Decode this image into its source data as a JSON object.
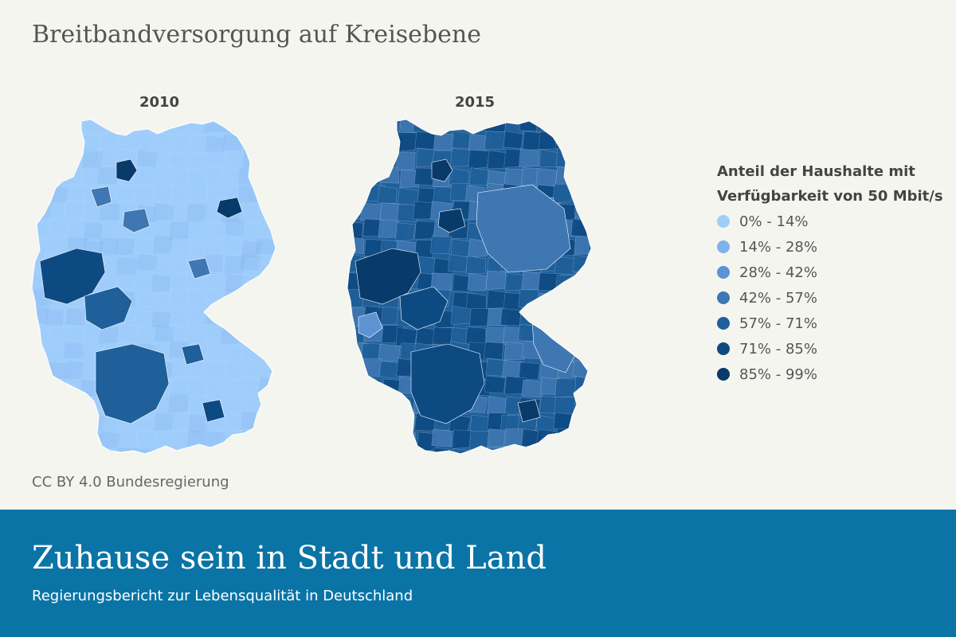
{
  "title": "Breitbandversorgung auf Kreisebene",
  "maps": [
    {
      "year": "2010",
      "base_class": "0% - 14%",
      "hotspots": [
        {
          "name": "hamburg",
          "class": "85% - 99%"
        },
        {
          "name": "berlin",
          "class": "85% - 99%"
        },
        {
          "name": "ruhr",
          "class": "71% - 85%"
        },
        {
          "name": "rhein-main",
          "class": "57% - 71%"
        },
        {
          "name": "baden-wuerttemberg",
          "class": "57% - 71%"
        },
        {
          "name": "bremen",
          "class": "42% - 57%"
        },
        {
          "name": "hannover",
          "class": "42% - 57%"
        },
        {
          "name": "leipzig",
          "class": "42% - 57%"
        },
        {
          "name": "nuernberg",
          "class": "57% - 71%"
        },
        {
          "name": "muenchen",
          "class": "71% - 85%"
        }
      ]
    },
    {
      "year": "2015",
      "base_class": "57% - 71%",
      "hotspots": [
        {
          "name": "hamburg",
          "class": "85% - 99%"
        },
        {
          "name": "berlin",
          "class": "71% - 85%"
        },
        {
          "name": "ruhr",
          "class": "85% - 99%"
        },
        {
          "name": "rhein-main",
          "class": "71% - 85%"
        },
        {
          "name": "baden-wuerttemberg",
          "class": "71% - 85%"
        },
        {
          "name": "ost-deutschland",
          "class": "42% - 57%"
        },
        {
          "name": "saarland",
          "class": "28% - 42%"
        },
        {
          "name": "bayern-ost",
          "class": "42% - 57%"
        },
        {
          "name": "muenchen",
          "class": "85% - 99%"
        },
        {
          "name": "hannover",
          "class": "85% - 99%"
        }
      ]
    }
  ],
  "legend": {
    "title_line1": "Anteil der Haushalte mit",
    "title_line2": "Verfügbarkeit von 50 Mbit/s",
    "items": [
      {
        "label": "0% - 14%",
        "color": "#9fcdfb"
      },
      {
        "label": "14% - 28%",
        "color": "#7fb1ea"
      },
      {
        "label": "28% - 42%",
        "color": "#5d93d2"
      },
      {
        "label": "42% - 57%",
        "color": "#3f77b2"
      },
      {
        "label": "57% - 71%",
        "color": "#1f5f9a"
      },
      {
        "label": "71% - 85%",
        "color": "#0e4a82"
      },
      {
        "label": "85% - 99%",
        "color": "#083a6a"
      }
    ]
  },
  "credit": "CC BY 4.0 Bundesregierung",
  "footer": {
    "title": "Zuhause sein in Stadt und Land",
    "subtitle": "Regierungsbericht zur Lebensqualität in Deutschland"
  }
}
